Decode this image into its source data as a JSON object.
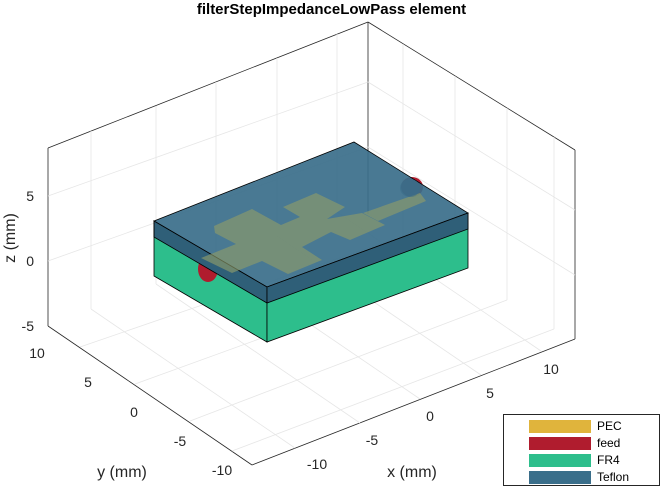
{
  "chart_data": {
    "type": "3d-surface",
    "title": "filterStepImpedanceLowPass element",
    "xlabel": "x (mm)",
    "ylabel": "y (mm)",
    "zlabel": "z (mm)",
    "x_ticks": [
      "-10",
      "-5",
      "0",
      "5",
      "10"
    ],
    "y_ticks": [
      "10",
      "5",
      "0",
      "-5",
      "-10"
    ],
    "z_ticks": [
      "5",
      "0",
      "-5"
    ],
    "grid": true,
    "legend_position": "bottom-right",
    "legend": [
      {
        "label": "PEC",
        "color": "#E0B43C"
      },
      {
        "label": "feed",
        "color": "#B01C2E"
      },
      {
        "label": "FR4",
        "color": "#2DBE8C"
      },
      {
        "label": "Teflon",
        "color": "#3A6E8A"
      }
    ]
  }
}
